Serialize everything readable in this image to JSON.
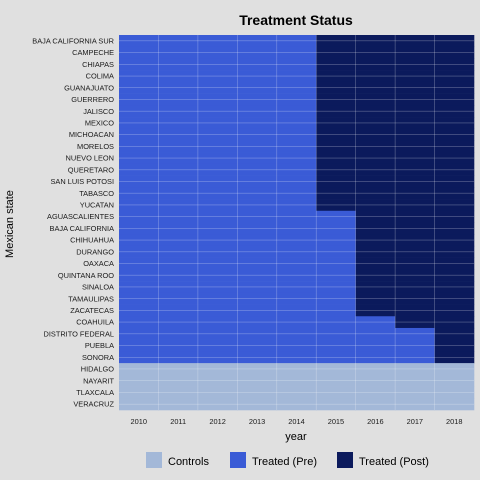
{
  "chart_data": {
    "type": "heatmap",
    "title": "Treatment Status",
    "xlabel": "year",
    "ylabel": "Mexican state",
    "x": [
      2010,
      2011,
      2012,
      2013,
      2014,
      2015,
      2016,
      2017,
      2018
    ],
    "states": [
      {
        "name": "BAJA CALIFORNIA SUR",
        "first_post_year": 2015
      },
      {
        "name": "CAMPECHE",
        "first_post_year": 2015
      },
      {
        "name": "CHIAPAS",
        "first_post_year": 2015
      },
      {
        "name": "COLIMA",
        "first_post_year": 2015
      },
      {
        "name": "GUANAJUATO",
        "first_post_year": 2015
      },
      {
        "name": "GUERRERO",
        "first_post_year": 2015
      },
      {
        "name": "JALISCO",
        "first_post_year": 2015
      },
      {
        "name": "MEXICO",
        "first_post_year": 2015
      },
      {
        "name": "MICHOACAN",
        "first_post_year": 2015
      },
      {
        "name": "MORELOS",
        "first_post_year": 2015
      },
      {
        "name": "NUEVO LEON",
        "first_post_year": 2015
      },
      {
        "name": "QUERETARO",
        "first_post_year": 2015
      },
      {
        "name": "SAN LUIS POTOSI",
        "first_post_year": 2015
      },
      {
        "name": "TABASCO",
        "first_post_year": 2015
      },
      {
        "name": "YUCATAN",
        "first_post_year": 2015
      },
      {
        "name": "AGUASCALIENTES",
        "first_post_year": 2016
      },
      {
        "name": "BAJA CALIFORNIA",
        "first_post_year": 2016
      },
      {
        "name": "CHIHUAHUA",
        "first_post_year": 2016
      },
      {
        "name": "DURANGO",
        "first_post_year": 2016
      },
      {
        "name": "OAXACA",
        "first_post_year": 2016
      },
      {
        "name": "QUINTANA ROO",
        "first_post_year": 2016
      },
      {
        "name": "SINALOA",
        "first_post_year": 2016
      },
      {
        "name": "TAMAULIPAS",
        "first_post_year": 2016
      },
      {
        "name": "ZACATECAS",
        "first_post_year": 2016
      },
      {
        "name": "COAHUILA",
        "first_post_year": 2017
      },
      {
        "name": "DISTRITO FEDERAL",
        "first_post_year": 2018
      },
      {
        "name": "PUEBLA",
        "first_post_year": 2018
      },
      {
        "name": "SONORA",
        "first_post_year": 2018
      },
      {
        "name": "HIDALGO",
        "first_post_year": null
      },
      {
        "name": "NAYARIT",
        "first_post_year": null
      },
      {
        "name": "TLAXCALA",
        "first_post_year": null
      },
      {
        "name": "VERACRUZ",
        "first_post_year": null
      }
    ],
    "legend": {
      "placement": "bottom",
      "items": [
        {
          "key": "control",
          "label": "Controls",
          "color": "#a3b8d8"
        },
        {
          "key": "pre",
          "label": "Treated (Pre)",
          "color": "#3a5bd6"
        },
        {
          "key": "post",
          "label": "Treated (Post)",
          "color": "#0b1a5c"
        }
      ]
    },
    "grid": true
  }
}
